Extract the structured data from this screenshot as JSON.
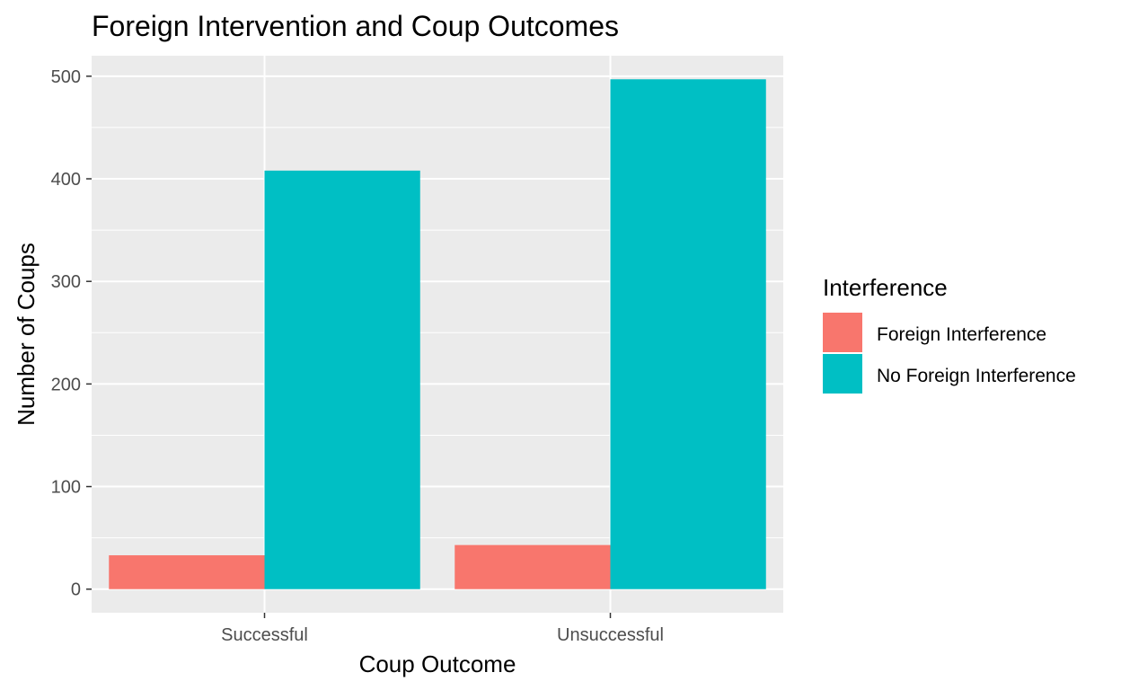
{
  "chart_data": {
    "type": "bar",
    "title": "Foreign Intervention and Coup Outcomes",
    "xlabel": "Coup Outcome",
    "ylabel": "Number of Coups",
    "categories": [
      "Successful",
      "Unsuccessful"
    ],
    "series": [
      {
        "name": "Foreign Interference",
        "values": [
          33,
          43
        ],
        "color": "#F8766D"
      },
      {
        "name": "No Foreign Interference",
        "values": [
          408,
          497
        ],
        "color": "#00BFC4"
      }
    ],
    "ylim": [
      -23,
      520
    ],
    "yticks": [
      0,
      100,
      200,
      300,
      400,
      500
    ],
    "grid": true,
    "legend": {
      "title": "Interference",
      "position": "right"
    },
    "panel_background": "#EBEBEB",
    "gridline_color": "#FFFFFF"
  }
}
